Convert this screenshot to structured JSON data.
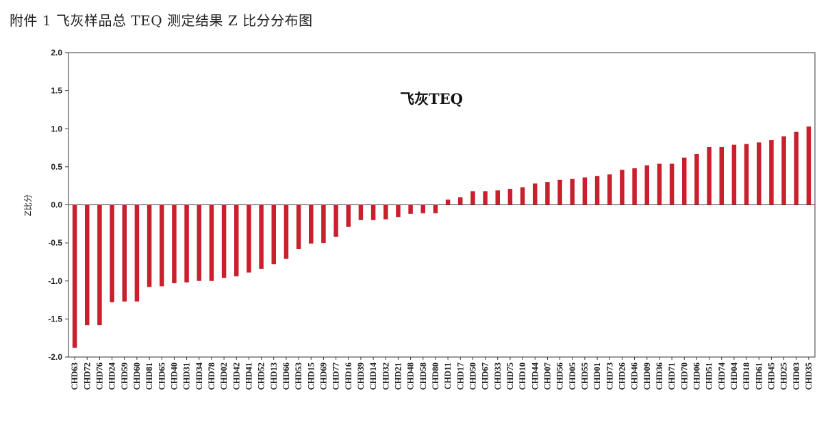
{
  "document": {
    "caption": "附件 1  飞灰样品总 TEQ 测定结果 Z 比分分布图"
  },
  "chart_data": {
    "type": "bar",
    "title": "飞灰TEQ",
    "xlabel": "",
    "ylabel": "Z比分",
    "ylim": [
      -2.0,
      2.0
    ],
    "yticks": [
      2.0,
      1.5,
      1.0,
      0.5,
      0.0,
      -0.5,
      -1.0,
      -1.5,
      -2.0
    ],
    "ytick_labels": [
      "2.0",
      "1.5",
      "1.0",
      "0.5",
      "0.0",
      "-0.5",
      "-1.0",
      "-1.5",
      "-2.0"
    ],
    "grid": false,
    "legend": "none",
    "bar_color": "#c8202c",
    "categories": [
      "CHD63",
      "CHD72",
      "CHD76",
      "CHD24",
      "CHD59",
      "CHD60",
      "CHD81",
      "CHD65",
      "CHD40",
      "CHD31",
      "CHD34",
      "CHD78",
      "CHD02",
      "CHD42",
      "CHD41",
      "CHD52",
      "CHD13",
      "CHD66",
      "CHD53",
      "CHD15",
      "CHD69",
      "CHD77",
      "CHD16",
      "CHD39",
      "CHD14",
      "CHD32",
      "CHD21",
      "CHD48",
      "CHD58",
      "CHD80",
      "CHD11",
      "CHD17",
      "CHD50",
      "CHD67",
      "CHD33",
      "CHD75",
      "CHD10",
      "CHD44",
      "CHD07",
      "CHD56",
      "CHD05",
      "CHD55",
      "CHD01",
      "CHD73",
      "CHD26",
      "CHD46",
      "CHD09",
      "CHD36",
      "CHD71",
      "CHD70",
      "CHD06",
      "CHD51",
      "CHD74",
      "CHD04",
      "CHD18",
      "CHD61",
      "CHD45",
      "CHD25",
      "CHD03",
      "CHD35"
    ],
    "values": [
      -1.88,
      -1.58,
      -1.58,
      -1.28,
      -1.27,
      -1.27,
      -1.08,
      -1.07,
      -1.03,
      -1.02,
      -1.0,
      -1.0,
      -0.96,
      -0.94,
      -0.89,
      -0.84,
      -0.78,
      -0.71,
      -0.58,
      -0.51,
      -0.5,
      -0.42,
      -0.29,
      -0.2,
      -0.2,
      -0.19,
      -0.16,
      -0.12,
      -0.11,
      -0.11,
      0.07,
      0.1,
      0.18,
      0.18,
      0.19,
      0.21,
      0.23,
      0.28,
      0.3,
      0.33,
      0.34,
      0.36,
      0.38,
      0.4,
      0.46,
      0.48,
      0.52,
      0.54,
      0.54,
      0.62,
      0.67,
      0.76,
      0.76,
      0.79,
      0.8,
      0.82,
      0.85,
      0.9,
      0.96,
      1.03
    ]
  }
}
